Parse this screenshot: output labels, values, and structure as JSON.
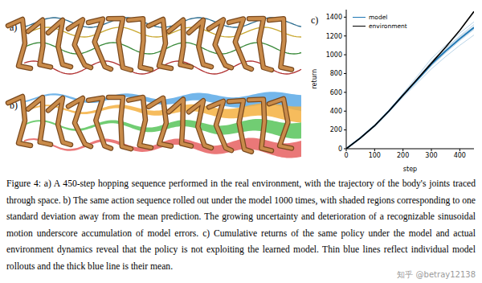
{
  "panels": {
    "a": {
      "label": "a)"
    },
    "b": {
      "label": "b)"
    }
  },
  "chart_data": {
    "type": "line",
    "title": "c)",
    "x_label": "step",
    "y_label": "return",
    "x": [
      0,
      50,
      100,
      150,
      200,
      250,
      300,
      350,
      400,
      450
    ],
    "xlim": [
      0,
      450
    ],
    "xticks": [
      0,
      100,
      200,
      300,
      400
    ],
    "ylim": [
      0,
      1480
    ],
    "yticks": [
      0,
      200,
      400,
      600,
      800,
      1000,
      1200,
      1400
    ],
    "legend": "upper left",
    "series": [
      {
        "name": "model",
        "color": "#1f77b4",
        "values": [
          0,
          115,
          245,
          400,
          570,
          730,
          900,
          1040,
          1170,
          1290
        ],
        "rollouts": [
          [
            0,
            115,
            245,
            405,
            590,
            770,
            960,
            1100,
            1230,
            1350
          ],
          [
            0,
            115,
            240,
            390,
            550,
            700,
            850,
            980,
            1100,
            1210
          ],
          [
            0,
            118,
            250,
            410,
            580,
            750,
            930,
            1070,
            1200,
            1320
          ],
          [
            0,
            112,
            240,
            395,
            560,
            720,
            880,
            1020,
            1150,
            1270
          ],
          [
            0,
            116,
            248,
            402,
            575,
            740,
            910,
            1060,
            1190,
            1300
          ]
        ]
      },
      {
        "name": "environment",
        "color": "#000000",
        "values": [
          0,
          115,
          245,
          400,
          570,
          740,
          910,
          1080,
          1260,
          1460
        ]
      }
    ]
  },
  "caption": "Figure 4: a) A 450-step hopping sequence performed in the real environment, with the trajectory of the body's joints traced through space. b) The same action sequence rolled out under the model 1000 times, with shaded regions corresponding to one standard deviation away from the mean prediction. The growing uncertainty and deterioration of a recognizable sinusoidal motion underscore accumulation of model errors. c) Cumulative returns of the same policy under the model and actual environment dynamics reveal that the policy is not exploiting the learned model. Thin blue lines reflect individual model rollouts and the thick blue line is their mean.",
  "watermark": "知乎 @betray12138"
}
